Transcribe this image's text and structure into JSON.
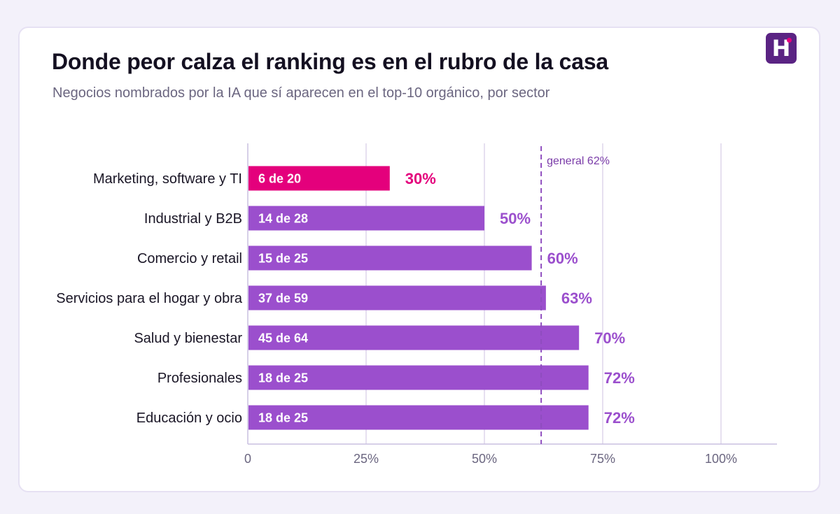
{
  "header": {
    "title": "Donde peor calza el ranking es en el rubro de la casa",
    "subtitle": "Negocios nombrados por la IA que sí aparecen en el top-10 orgánico, por sector"
  },
  "logo": {
    "letter": "H",
    "icon": "brand-h-logo-icon",
    "background": "#5a2383",
    "dot_color": "#e6007e"
  },
  "colors": {
    "highlight": "#e4007c",
    "bar": "#9b4fcd",
    "reference": "#8f4dbf",
    "grid": "#ddd6ec",
    "axis": "#c9bfe0"
  },
  "chart_data": {
    "type": "bar",
    "orientation": "horizontal",
    "categories": [
      "Marketing, software y TI",
      "Industrial y B2B",
      "Comercio y retail",
      "Servicios para el hogar y obra",
      "Salud y bienestar",
      "Profesionales",
      "Educación y ocio"
    ],
    "values": [
      30,
      50,
      60,
      63,
      70,
      72,
      72
    ],
    "value_labels": [
      "30%",
      "50%",
      "60%",
      "63%",
      "70%",
      "72%",
      "72%"
    ],
    "bar_labels": [
      "6 de 20",
      "14 de 28",
      "15 de 25",
      "37 de 59",
      "45 de 64",
      "18 de 25",
      "18 de 25"
    ],
    "highlighted_index": 0,
    "xlim": [
      0,
      112
    ],
    "xticks": [
      0,
      25,
      50,
      75,
      100
    ],
    "xtick_labels": [
      "0",
      "25%",
      "50%",
      "75%",
      "100%"
    ],
    "reference_line": {
      "value": 62,
      "label": "general 62%",
      "style": "dashed"
    },
    "grid": true,
    "xlabel": "",
    "ylabel": ""
  }
}
